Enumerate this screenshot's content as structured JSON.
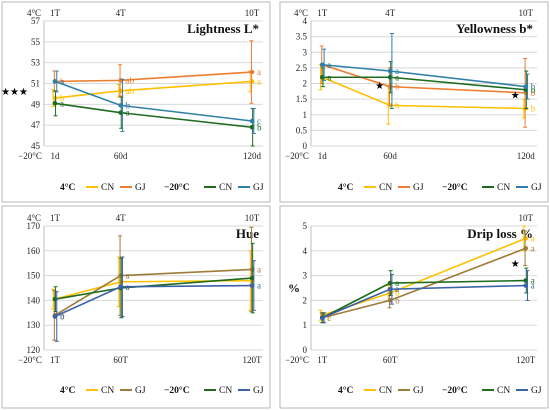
{
  "colors": {
    "CN4": "#ffc000",
    "GJ4_p1": "#ed7d31",
    "GJ4_other": "#9e7b3a",
    "CN20": "#1e6b1e",
    "GJ20": "#2f7fa8",
    "GJ20_p3": "#3a62a8",
    "grid": "#d9d9d9",
    "frame": "#b7b7b7"
  },
  "chart_data": [
    {
      "type": "line",
      "title": "Lightness L*",
      "ylabel": "",
      "ylim": [
        45,
        57
      ],
      "yticks": [
        "45",
        "47",
        "49",
        "51",
        "53",
        "55",
        "57"
      ],
      "x_top_labels": [
        "4°C",
        "1T",
        "4T",
        "10T"
      ],
      "x_bottom_labels": [
        "−20°C",
        "1d",
        "60d",
        "120d"
      ],
      "x": [
        0,
        1,
        2
      ],
      "series": [
        {
          "name": "CN",
          "group": "4°C",
          "color_key": "CN4",
          "values": [
            49.6,
            50.3,
            51.2
          ],
          "err": [
            0.8,
            0.6,
            1.0
          ],
          "labels": [
            "b",
            "ab",
            "a"
          ]
        },
        {
          "name": "GJ",
          "group": "4°C",
          "color_key": "GJ4_p1",
          "values": [
            51.2,
            51.3,
            52.1
          ],
          "err": [
            1.0,
            1.5,
            3.0
          ],
          "labels": [
            "b",
            "ab",
            "a"
          ]
        },
        {
          "name": "CN",
          "group": "−20°C",
          "color_key": "CN20",
          "values": [
            49.1,
            48.2,
            46.8
          ],
          "err": [
            1.2,
            1.5,
            1.8
          ],
          "labels": [
            "a",
            "a",
            "b"
          ]
        },
        {
          "name": "GJ",
          "group": "−20°C",
          "color_key": "GJ20",
          "values": [
            51.2,
            48.9,
            47.4
          ],
          "err": [
            1.0,
            2.5,
            1.2
          ],
          "labels": [
            "a",
            "b",
            "c"
          ]
        }
      ],
      "stars": [
        {
          "x": 0,
          "text": "★★★"
        }
      ]
    },
    {
      "type": "line",
      "title": "Yellowness b*",
      "ylabel": "",
      "ylim": [
        0,
        4
      ],
      "yticks": [
        "0",
        "0.5",
        "1",
        "1.5",
        "2",
        "2.5",
        "3",
        "3.5",
        "4"
      ],
      "x_top_labels": [
        "4°C",
        "1T",
        "4T",
        "10T"
      ],
      "x_bottom_labels": [
        "−20°C",
        "1d",
        "60d",
        "120d"
      ],
      "x": [
        0,
        1,
        2
      ],
      "series": [
        {
          "name": "CN",
          "group": "4°C",
          "color_key": "CN4",
          "values": [
            2.2,
            1.3,
            1.2
          ],
          "err": [
            0.4,
            0.6,
            0.3
          ],
          "labels": [
            "a",
            "b",
            "b"
          ]
        },
        {
          "name": "GJ",
          "group": "4°C",
          "color_key": "GJ4_p1",
          "values": [
            2.6,
            1.9,
            1.7
          ],
          "err": [
            0.6,
            0.6,
            1.1
          ],
          "labels": [
            "a",
            "b",
            "b"
          ]
        },
        {
          "name": "CN",
          "group": "−20°C",
          "color_key": "CN20",
          "values": [
            2.2,
            2.2,
            1.8
          ],
          "err": [
            0.3,
            0.5,
            0.6
          ],
          "labels": [
            "a",
            "a",
            "b"
          ]
        },
        {
          "name": "GJ",
          "group": "−20°C",
          "color_key": "GJ20",
          "values": [
            2.6,
            2.4,
            1.9
          ],
          "err": [
            0.5,
            1.2,
            0.4
          ],
          "labels": [
            "a",
            "a",
            "b"
          ]
        }
      ],
      "stars": [
        {
          "x": 1,
          "text": "★"
        },
        {
          "x": 2,
          "text": "★"
        }
      ]
    },
    {
      "type": "line",
      "title": "Hue",
      "ylabel": "",
      "ylim": [
        120,
        170
      ],
      "yticks": [
        "120",
        "130",
        "140",
        "150",
        "160",
        "170"
      ],
      "x_top_labels": [
        "4°C",
        "1T",
        "4T",
        "10T"
      ],
      "x_bottom_labels": [
        "−20°C",
        "1T",
        "60T",
        "120T"
      ],
      "x": [
        0,
        1,
        2
      ],
      "series": [
        {
          "name": "CN",
          "group": "4°C",
          "color_key": "CN4",
          "values": [
            140.5,
            147.5,
            148.0
          ],
          "err": [
            4.0,
            10.0,
            12.0
          ],
          "labels": [
            "",
            "",
            ""
          ]
        },
        {
          "name": "GJ",
          "group": "4°C",
          "color_key": "GJ4_other",
          "values": [
            134.0,
            150.0,
            152.5
          ],
          "err": [
            10.0,
            16.0,
            17.0
          ],
          "labels": [
            "b",
            "a",
            "a"
          ]
        },
        {
          "name": "CN",
          "group": "−20°C",
          "color_key": "CN20",
          "values": [
            140.5,
            145.0,
            149.0
          ],
          "err": [
            5.0,
            12.0,
            14.0
          ],
          "labels": [
            "",
            "",
            ""
          ]
        },
        {
          "name": "GJ",
          "group": "−20°C",
          "color_key": "GJ20_p3",
          "values": [
            133.5,
            145.5,
            146.0
          ],
          "err": [
            10.0,
            12.0,
            10.0
          ],
          "labels": [
            "b",
            "a",
            "a"
          ]
        }
      ],
      "stars": []
    },
    {
      "type": "line",
      "title": "Drip loss %",
      "ylabel": "%",
      "ylim": [
        0,
        5
      ],
      "yticks": [
        "0",
        "1",
        "2",
        "3",
        "4",
        "5"
      ],
      "x_top_labels": [
        "",
        "",
        "",
        "10T"
      ],
      "x_bottom_labels": [
        "−20°C",
        "1T",
        "60T",
        "120T"
      ],
      "x": [
        0,
        1,
        2
      ],
      "series": [
        {
          "name": "CN",
          "group": "4°C",
          "color_key": "CN4",
          "values": [
            1.4,
            2.3,
            4.5
          ],
          "err": [
            0.2,
            0.3,
            0.5
          ],
          "labels": [
            "c",
            "b",
            "a"
          ]
        },
        {
          "name": "GJ",
          "group": "4°C",
          "color_key": "GJ4_other",
          "values": [
            1.3,
            2.0,
            4.1
          ],
          "err": [
            0.2,
            0.3,
            0.7
          ],
          "labels": [
            "c",
            "b",
            "a"
          ]
        },
        {
          "name": "CN",
          "group": "−20°C",
          "color_key": "CN20",
          "values": [
            1.3,
            2.7,
            2.8
          ],
          "err": [
            0.2,
            0.5,
            0.5
          ],
          "labels": [
            "",
            "a",
            "a"
          ]
        },
        {
          "name": "GJ",
          "group": "−20°C",
          "color_key": "GJ20_p3",
          "values": [
            1.3,
            2.45,
            2.6
          ],
          "err": [
            0.2,
            0.6,
            0.6
          ],
          "labels": [
            "",
            "a",
            "a"
          ]
        }
      ],
      "stars": [
        {
          "x": 2,
          "text": "★"
        }
      ]
    }
  ],
  "legends": [
    {
      "items": [
        {
          "group": "4°C",
          "entries": [
            {
              "name": "CN",
              "color_key": "CN4"
            },
            {
              "name": "GJ",
              "color_key": "GJ4_p1"
            }
          ]
        },
        {
          "group": "−20°C",
          "entries": [
            {
              "name": "CN",
              "color_key": "CN20"
            },
            {
              "name": "GJ",
              "color_key": "GJ20"
            }
          ]
        }
      ]
    },
    {
      "items": [
        {
          "group": "4°C",
          "entries": [
            {
              "name": "CN",
              "color_key": "CN4"
            },
            {
              "name": "GJ",
              "color_key": "GJ4_p1"
            }
          ]
        },
        {
          "group": "−20°C",
          "entries": [
            {
              "name": "CN",
              "color_key": "CN20"
            },
            {
              "name": "GJ",
              "color_key": "GJ20"
            }
          ]
        }
      ]
    },
    {
      "items": [
        {
          "group": "4°C",
          "entries": [
            {
              "name": "CN",
              "color_key": "CN4"
            },
            {
              "name": "GJ",
              "color_key": "GJ4_other"
            }
          ]
        },
        {
          "group": "−20°C",
          "entries": [
            {
              "name": "CN",
              "color_key": "CN20"
            },
            {
              "name": "GJ",
              "color_key": "GJ20_p3"
            }
          ]
        }
      ]
    },
    {
      "items": [
        {
          "group": "4°C",
          "entries": [
            {
              "name": "CN",
              "color_key": "CN4"
            },
            {
              "name": "GJ",
              "color_key": "GJ4_other"
            }
          ]
        },
        {
          "group": "−20°C",
          "entries": [
            {
              "name": "CN",
              "color_key": "CN20"
            },
            {
              "name": "GJ",
              "color_key": "GJ20_p3"
            }
          ]
        }
      ]
    }
  ]
}
